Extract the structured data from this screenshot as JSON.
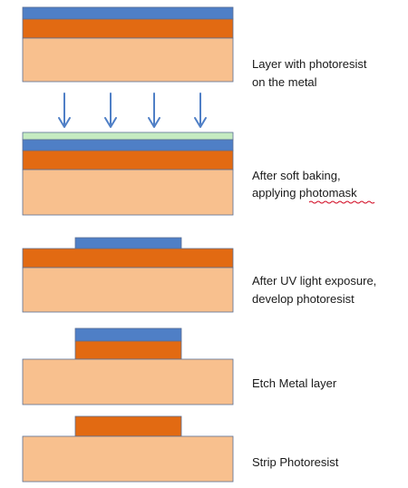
{
  "colors": {
    "substrate": "#F8C08E",
    "metal": "#E26A12",
    "photoresist": "#4F7FC6",
    "photomask": "#C5EBC1",
    "arrow": "#4F7FC6",
    "outline": "#5b6f93",
    "spellcheck_underline": "#d0021b"
  },
  "steps": [
    {
      "id": "step-1",
      "line1": "Layer with photoresist",
      "line2": "on the metal"
    },
    {
      "id": "step-2",
      "line1": "After soft baking,",
      "line2": "applying photomask",
      "spellcheck_word": "photomask"
    },
    {
      "id": "step-3",
      "line1": "After UV light exposure,",
      "line2": "develop photoresist"
    },
    {
      "id": "step-4",
      "line1": "Etch Metal layer",
      "line2": ""
    },
    {
      "id": "step-5",
      "line1": "Strip Photoresist",
      "line2": ""
    }
  ],
  "icons": {
    "uv_arrow": "arrow-down-icon"
  }
}
